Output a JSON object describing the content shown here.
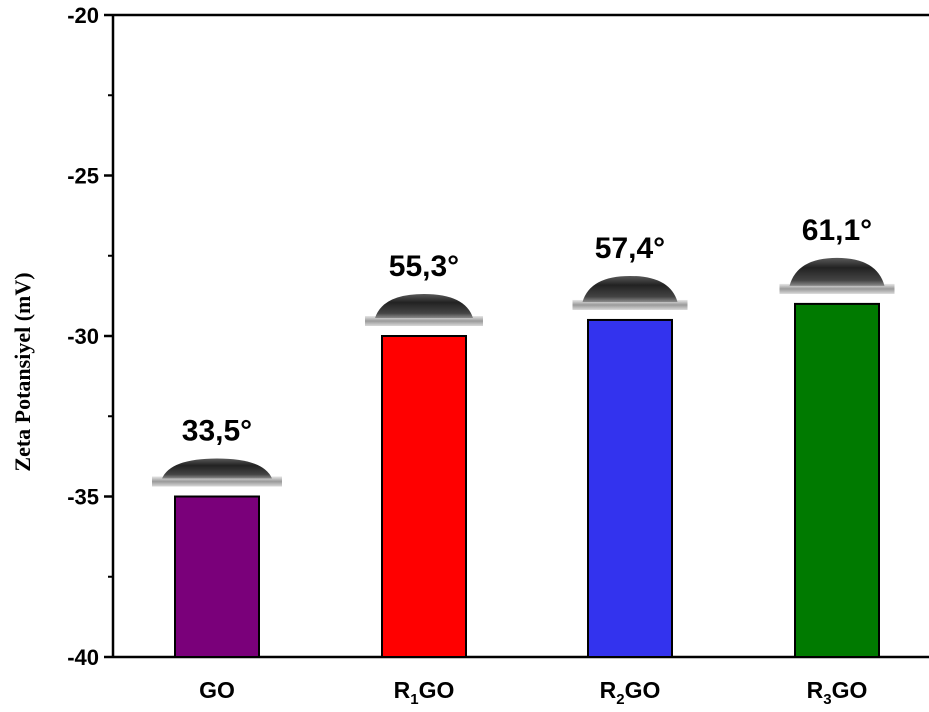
{
  "chart_data": {
    "type": "bar",
    "title": "",
    "xlabel": "",
    "ylabel": "Zeta Potansiyel (mV)",
    "ylim": [
      -40,
      -20
    ],
    "yticks": [
      -20,
      -25,
      -30,
      -35,
      -40
    ],
    "grid": false,
    "categories": [
      {
        "base": "GO",
        "sub": ""
      },
      {
        "base": "R",
        "sub": "1",
        "suffix": "GO"
      },
      {
        "base": "R",
        "sub": "2",
        "suffix": "GO"
      },
      {
        "base": "R",
        "sub": "3",
        "suffix": "GO"
      }
    ],
    "values": [
      -35,
      -30,
      -29.5,
      -29
    ],
    "colors": [
      "#7a007a",
      "#ff0000",
      "#3333ee",
      "#007a00"
    ],
    "annotations": [
      "33,5°",
      "55,3°",
      "57,4°",
      "61,1°"
    ],
    "annotation_note": "contact angle droplet images above each bar"
  }
}
